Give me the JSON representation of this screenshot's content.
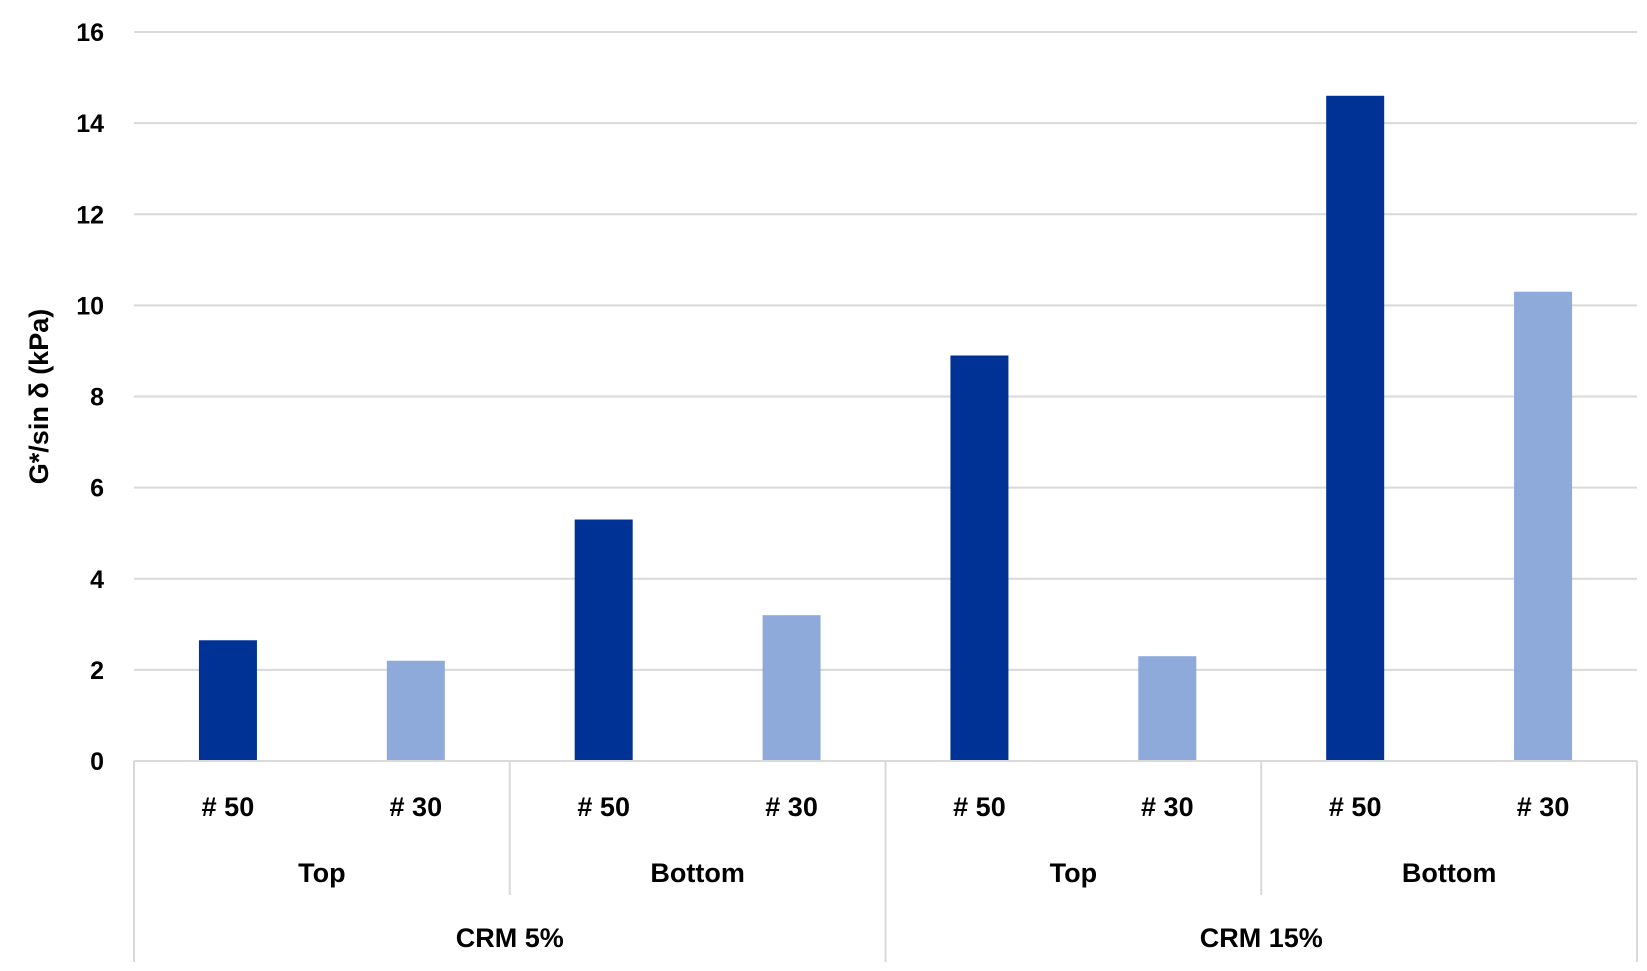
{
  "chart_data": {
    "type": "bar",
    "ylabel": "G*/sin δ (kPa)",
    "ylim": [
      0,
      16
    ],
    "y_ticks": [
      "0",
      "2",
      "4",
      "6",
      "8",
      "10",
      "12",
      "14",
      "16"
    ],
    "grid": true,
    "legend": "none",
    "categories": [
      "# 50",
      "# 30",
      "# 50",
      "# 30",
      "# 50",
      "# 30",
      "# 50",
      "# 30"
    ],
    "positions": [
      "Top",
      "Bottom",
      "Top",
      "Bottom"
    ],
    "groups": [
      "CRM 5%",
      "CRM 15%"
    ],
    "values": [
      2.65,
      2.2,
      5.3,
      3.2,
      8.9,
      2.3,
      14.6,
      10.3
    ],
    "bar_colors": [
      "#003296",
      "#8eaadb",
      "#003296",
      "#8eaadb",
      "#003296",
      "#8eaadb",
      "#003296",
      "#8eaadb"
    ]
  },
  "colors": {
    "dark_bar": "#003296",
    "light_bar": "#8eaadb",
    "grid": "#d9d9d9"
  }
}
